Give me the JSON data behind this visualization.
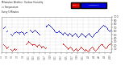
{
  "bg_color": "#ffffff",
  "plot_bg": "#ffffff",
  "humidity_color": "#0000dd",
  "temp_color": "#dd0000",
  "legend_humidity_label": "Humidity %",
  "legend_temp_label": "Temp °F",
  "ylim": [
    0,
    100
  ],
  "yticks": [
    10,
    20,
    30,
    40,
    50,
    60,
    70,
    80,
    90,
    100
  ],
  "humidity_segments": [
    {
      "x": [
        3,
        4,
        5
      ],
      "y": [
        68,
        70,
        72
      ]
    },
    {
      "x": [
        8,
        9
      ],
      "y": [
        60,
        62
      ]
    },
    {
      "x": [
        14,
        15,
        16,
        17,
        18
      ],
      "y": [
        52,
        50,
        48,
        52,
        54
      ]
    },
    {
      "x": [
        20,
        21,
        22,
        23,
        24,
        25,
        26,
        27,
        28,
        29,
        30,
        31,
        32,
        33,
        34,
        35,
        36,
        37
      ],
      "y": [
        56,
        58,
        60,
        58,
        56,
        54,
        52,
        56,
        58,
        60,
        58,
        56,
        54,
        52,
        50,
        54,
        56,
        58
      ]
    },
    {
      "x": [
        42,
        43,
        44,
        45,
        46,
        47,
        48,
        49,
        50,
        51,
        52,
        53,
        54,
        55,
        56
      ],
      "y": [
        64,
        62,
        60,
        58,
        56,
        60,
        62,
        64,
        62,
        60,
        58,
        56,
        54,
        52,
        50
      ]
    },
    {
      "x": [
        65,
        66,
        67,
        68,
        69,
        70,
        71,
        72,
        73,
        74,
        75,
        76,
        77,
        78,
        79,
        80,
        81,
        82,
        83,
        84,
        85,
        86,
        87,
        88,
        89,
        90,
        91,
        92,
        93,
        94,
        95,
        96,
        97,
        98,
        99,
        100,
        101,
        102,
        103,
        104,
        105,
        106,
        107,
        108,
        109,
        110,
        111,
        112,
        113,
        114,
        115,
        116,
        117,
        118,
        119,
        120,
        121,
        122,
        123,
        124,
        125,
        126,
        127,
        128,
        129,
        130,
        131,
        132,
        133,
        134,
        135,
        136,
        137,
        138,
        139,
        140,
        141,
        142,
        143,
        144,
        145,
        146,
        147,
        148,
        149,
        150,
        151,
        152,
        153,
        154,
        155,
        156,
        157,
        158,
        159,
        160
      ],
      "y": [
        72,
        74,
        76,
        78,
        80,
        78,
        76,
        74,
        72,
        70,
        68,
        66,
        64,
        62,
        60,
        58,
        56,
        58,
        60,
        62,
        60,
        58,
        56,
        54,
        52,
        50,
        52,
        54,
        56,
        54,
        52,
        50,
        48,
        50,
        52,
        54,
        52,
        50,
        48,
        46,
        48,
        50,
        52,
        54,
        52,
        50,
        48,
        46,
        44,
        46,
        48,
        50,
        52,
        54,
        52,
        50,
        48,
        46,
        44,
        46,
        48,
        50,
        52,
        54,
        52,
        50,
        48,
        46,
        44,
        46,
        48,
        50,
        52,
        54,
        56,
        58,
        60,
        62,
        64,
        66,
        68,
        70,
        72,
        74,
        76,
        78,
        76,
        74,
        72,
        70,
        68,
        66,
        64,
        62,
        60,
        64
      ]
    }
  ],
  "temp_segments": [
    {
      "x": [
        3,
        4,
        5,
        6,
        7,
        8,
        9,
        10
      ],
      "y": [
        22,
        20,
        18,
        16,
        14,
        12,
        14,
        16
      ]
    },
    {
      "x": [
        14,
        15,
        16,
        17,
        18,
        19,
        20,
        21,
        22
      ],
      "y": [
        10,
        8,
        6,
        8,
        10,
        12,
        10,
        8,
        10
      ]
    },
    {
      "x": [
        36,
        37,
        38,
        39,
        40,
        41,
        42,
        43,
        44,
        45,
        46,
        47,
        48,
        49,
        50,
        51,
        52,
        53,
        54,
        55,
        56,
        57,
        58,
        59,
        60,
        61,
        62,
        63,
        64,
        65
      ],
      "y": [
        24,
        26,
        28,
        30,
        32,
        30,
        28,
        26,
        24,
        22,
        20,
        22,
        24,
        22,
        20,
        18,
        16,
        18,
        20,
        22,
        20,
        18,
        16,
        14,
        16,
        18,
        16,
        14,
        12,
        14
      ]
    },
    {
      "x": [
        90,
        91,
        92,
        93,
        94,
        95,
        96,
        97,
        98,
        99,
        100,
        101,
        102,
        103,
        104,
        105,
        106,
        107,
        108,
        109,
        110,
        111,
        112,
        113,
        114,
        115,
        116,
        117,
        118,
        119,
        120,
        121,
        122,
        123,
        124,
        125,
        126,
        127,
        128,
        129,
        130,
        131,
        132,
        133,
        134,
        135,
        136,
        137,
        138,
        139,
        140,
        141,
        142,
        143,
        144,
        145,
        146,
        147,
        148,
        149,
        150,
        151,
        152,
        153,
        154,
        155,
        156,
        157,
        158,
        159,
        160
      ],
      "y": [
        26,
        24,
        22,
        20,
        18,
        16,
        14,
        12,
        10,
        12,
        14,
        16,
        14,
        12,
        10,
        8,
        6,
        8,
        10,
        12,
        10,
        8,
        6,
        8,
        10,
        12,
        14,
        16,
        14,
        12,
        10,
        8,
        6,
        8,
        10,
        8,
        6,
        4,
        6,
        8,
        10,
        12,
        14,
        16,
        14,
        12,
        10,
        8,
        6,
        8,
        10,
        12,
        14,
        16,
        18,
        20,
        22,
        24,
        22,
        20,
        18,
        16,
        14,
        12,
        14,
        16,
        18,
        20,
        22,
        24,
        26
      ]
    }
  ],
  "n_points": 161,
  "xtick_positions": [
    0,
    8,
    16,
    24,
    32,
    40,
    48,
    56,
    64,
    72,
    80,
    88,
    96,
    104,
    112,
    120,
    128,
    136,
    144,
    152,
    160
  ],
  "xtick_labels": [
    "3/1",
    "3/3",
    "3/5",
    "3/7",
    "3/9",
    "3/11",
    "3/13",
    "3/15",
    "3/17",
    "3/19",
    "3/21",
    "3/23",
    "3/25",
    "3/27",
    "3/29",
    "3/31",
    "4/2",
    "4/4",
    "4/6",
    "4/8",
    "4/10"
  ]
}
